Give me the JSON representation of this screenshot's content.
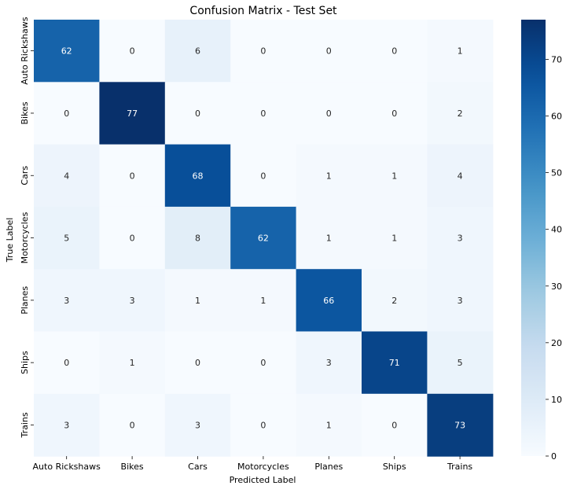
{
  "chart_data": {
    "type": "heatmap",
    "title": "Confusion Matrix - Test Set",
    "xlabel": "Predicted Label",
    "ylabel": "True Label",
    "x_categories": [
      "Auto Rickshaws",
      "Bikes",
      "Cars",
      "Motorcycles",
      "Planes",
      "Ships",
      "Trains"
    ],
    "y_categories": [
      "Auto Rickshaws",
      "Bikes",
      "Cars",
      "Motorcycles",
      "Planes",
      "Ships",
      "Trains"
    ],
    "matrix": [
      [
        62,
        0,
        6,
        0,
        0,
        0,
        1
      ],
      [
        0,
        77,
        0,
        0,
        0,
        0,
        2
      ],
      [
        4,
        0,
        68,
        0,
        1,
        1,
        4
      ],
      [
        5,
        0,
        8,
        62,
        1,
        1,
        3
      ],
      [
        3,
        3,
        1,
        1,
        66,
        2,
        3
      ],
      [
        0,
        1,
        0,
        0,
        3,
        71,
        5
      ],
      [
        3,
        0,
        3,
        0,
        1,
        0,
        73
      ]
    ],
    "colorbar": {
      "colormap": "Blues",
      "vmin": 0,
      "vmax": 77,
      "ticks": [
        0,
        10,
        20,
        30,
        40,
        50,
        60,
        70
      ]
    },
    "annotations_shown": true,
    "grid": false
  }
}
